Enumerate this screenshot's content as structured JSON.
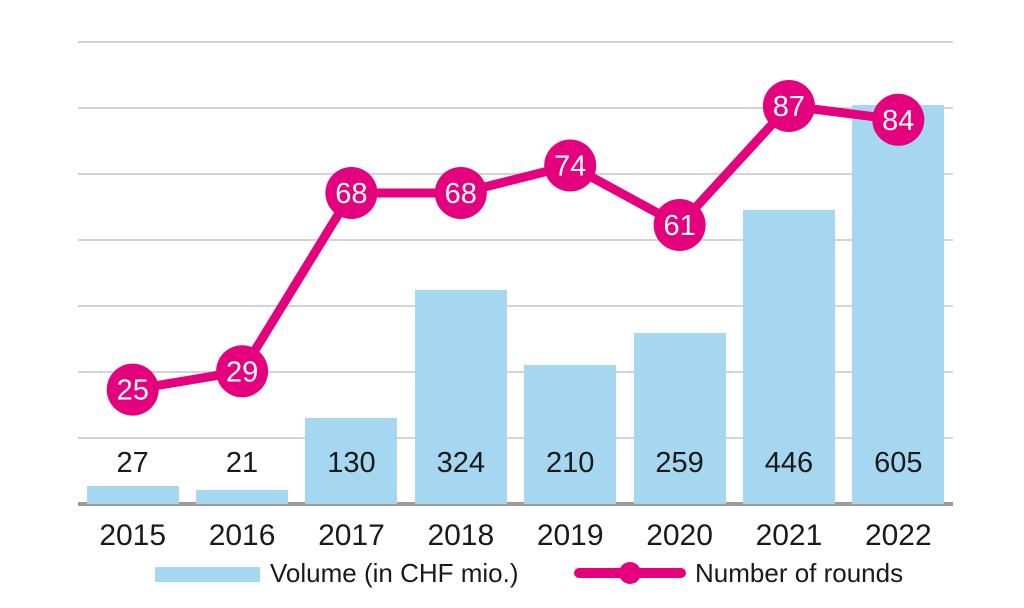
{
  "chart_data": {
    "type": "bar+line combo",
    "categories": [
      "2015",
      "2016",
      "2017",
      "2018",
      "2019",
      "2020",
      "2021",
      "2022"
    ],
    "series": [
      {
        "name": "Volume (in CHF mio.)",
        "type": "bar",
        "values": [
          27,
          21,
          130,
          324,
          210,
          259,
          446,
          605
        ],
        "color": "#A5D7F0",
        "axis_lim": [
          0,
          700
        ],
        "value_labels": "shown above/inside bars in black"
      },
      {
        "name": "Number of rounds",
        "type": "line",
        "values": [
          25,
          29,
          68,
          68,
          74,
          61,
          87,
          84
        ],
        "color": "#E5007E",
        "axis_lim": [
          0,
          101
        ],
        "value_labels": "shown in white inside circular markers"
      }
    ],
    "title": "",
    "xlabel": "",
    "ylabel": "",
    "grid": "horizontal gridlines every 100 units, no axis tick labels",
    "legend_position": "bottom"
  },
  "colors": {
    "bar": "#A5D7F0",
    "line": "#E5007E",
    "grid": "#D4D4D4",
    "axis": "#9B9B9B",
    "text": "#1A1A1A",
    "marker_text": "#FFFFFF",
    "background": "#FFFFFF"
  }
}
